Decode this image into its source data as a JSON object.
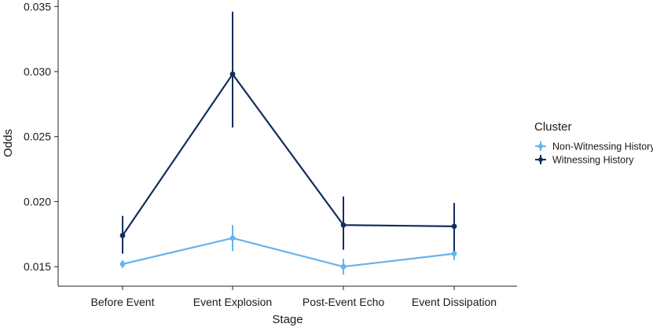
{
  "chart_data": {
    "type": "line",
    "xlabel": "Stage",
    "ylabel": "Odds",
    "categories": [
      "Before Event",
      "Event Explosion",
      "Post-Event Echo",
      "Event Dissipation"
    ],
    "ylim": [
      0.0135,
      0.0355
    ],
    "yticks": [
      0.015,
      0.02,
      0.025,
      0.03,
      0.035
    ],
    "ytick_labels": [
      "0.015",
      "0.020",
      "0.025",
      "0.030",
      "0.035"
    ],
    "grid": false,
    "error_bars": true,
    "legend": {
      "title": "Cluster",
      "placement": "right"
    },
    "series": [
      {
        "name": "Non-Witnessing History",
        "color": "#66b3ee",
        "values": [
          0.0152,
          0.0172,
          0.015,
          0.016
        ],
        "lower": [
          0.0149,
          0.0162,
          0.0144,
          0.0155
        ],
        "upper": [
          0.0155,
          0.0182,
          0.0156,
          0.0165
        ]
      },
      {
        "name": "Witnessing History",
        "color": "#142e5c",
        "values": [
          0.0174,
          0.0298,
          0.0182,
          0.0181
        ],
        "lower": [
          0.016,
          0.0257,
          0.0163,
          0.0162
        ],
        "upper": [
          0.0189,
          0.0346,
          0.0204,
          0.0199
        ]
      }
    ]
  }
}
